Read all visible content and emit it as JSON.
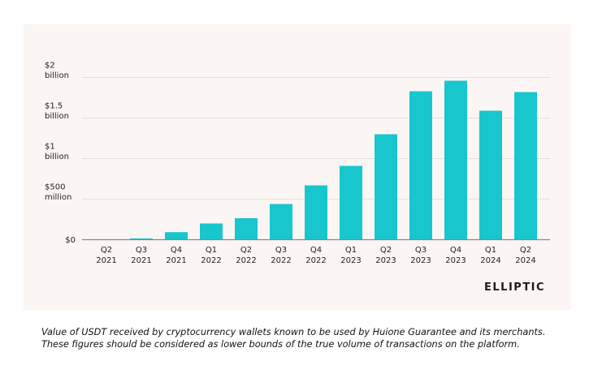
{
  "chart_data": {
    "type": "bar",
    "title": "",
    "xlabel": "",
    "ylabel": "",
    "categories": [
      "Q2 2021",
      "Q3 2021",
      "Q4 2021",
      "Q1 2022",
      "Q2 2022",
      "Q3 2022",
      "Q4 2022",
      "Q1 2023",
      "Q2 2023",
      "Q3 2023",
      "Q4 2023",
      "Q1 2024",
      "Q2 2024"
    ],
    "category_labels": [
      [
        "Q2",
        "2021"
      ],
      [
        "Q3",
        "2021"
      ],
      [
        "Q4",
        "2021"
      ],
      [
        "Q1",
        "2022"
      ],
      [
        "Q2",
        "2022"
      ],
      [
        "Q3",
        "2022"
      ],
      [
        "Q4",
        "2022"
      ],
      [
        "Q1",
        "2023"
      ],
      [
        "Q2",
        "2023"
      ],
      [
        "Q3",
        "2023"
      ],
      [
        "Q4",
        "2023"
      ],
      [
        "Q1",
        "2024"
      ],
      [
        "Q2",
        "2024"
      ]
    ],
    "values": [
      0,
      16000000,
      93000000,
      200000000,
      265000000,
      440000000,
      670000000,
      910000000,
      1300000000,
      1830000000,
      1960000000,
      1590000000,
      1820000000
    ],
    "unit": "USD",
    "ylim": [
      0,
      2000000000
    ],
    "yticks": [
      {
        "value": 0,
        "label": [
          "$0"
        ]
      },
      {
        "value": 500000000,
        "label": [
          "$500",
          "million"
        ]
      },
      {
        "value": 1000000000,
        "label": [
          "$1",
          "billion"
        ]
      },
      {
        "value": 1500000000,
        "label": [
          "$1.5",
          "billion"
        ]
      },
      {
        "value": 2000000000,
        "label": [
          "$2",
          "billion"
        ]
      }
    ],
    "grid": true,
    "legend": "none",
    "bar_color": "#18C6CE"
  },
  "branding": {
    "logo_text": "ELLIPTIC"
  },
  "caption": "Value of USDT received by cryptocurrency wallets known to be used by Huione Guarantee and its merchants. These figures should be considered as lower bounds of the true volume of transactions on the platform."
}
